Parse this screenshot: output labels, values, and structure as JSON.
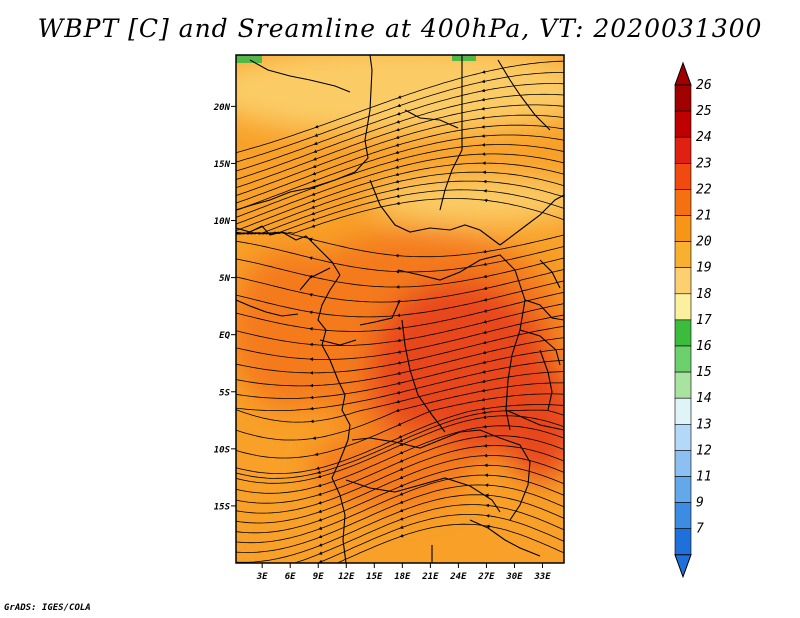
{
  "title": "WBPT [C] and Sreamline at 400hPa, VT: 2020031300",
  "credit": "GrADS: IGES/COLA",
  "map": {
    "lat_labels": [
      "20N",
      "15N",
      "10N",
      "5N",
      "EQ",
      "5S",
      "10S",
      "15S"
    ],
    "lat_values": [
      20,
      15,
      10,
      5,
      0,
      -5,
      -10,
      -15
    ],
    "lon_labels": [
      "3E",
      "6E",
      "9E",
      "12E",
      "15E",
      "18E",
      "21E",
      "24E",
      "27E",
      "30E",
      "33E"
    ],
    "lon_values": [
      3,
      6,
      9,
      12,
      15,
      18,
      21,
      24,
      27,
      30,
      33
    ],
    "lat_range": [
      -20,
      24.5
    ],
    "lon_range": [
      0.2,
      35.3
    ]
  },
  "legend": {
    "labels": [
      "26",
      "25",
      "24",
      "23",
      "22",
      "21",
      "20",
      "19",
      "18",
      "17",
      "16",
      "15",
      "14",
      "13",
      "12",
      "11",
      "9",
      "7"
    ],
    "colors": [
      "#a00000",
      "#c00000",
      "#e02010",
      "#f04a10",
      "#f47010",
      "#f89418",
      "#f8b030",
      "#fcd070",
      "#fcf0a0",
      "#3cbc3c",
      "#6cd06c",
      "#a8e4a0",
      "#e0f4f8",
      "#b4d8f8",
      "#8cc0f0",
      "#64a8ec",
      "#3c8ce4",
      "#2070dc"
    ]
  },
  "colors": {
    "hot": "#e8461a",
    "warm": "#f47a1c",
    "mild": "#f8a028",
    "cool": "#fbcc66",
    "green": "#54b848"
  }
}
